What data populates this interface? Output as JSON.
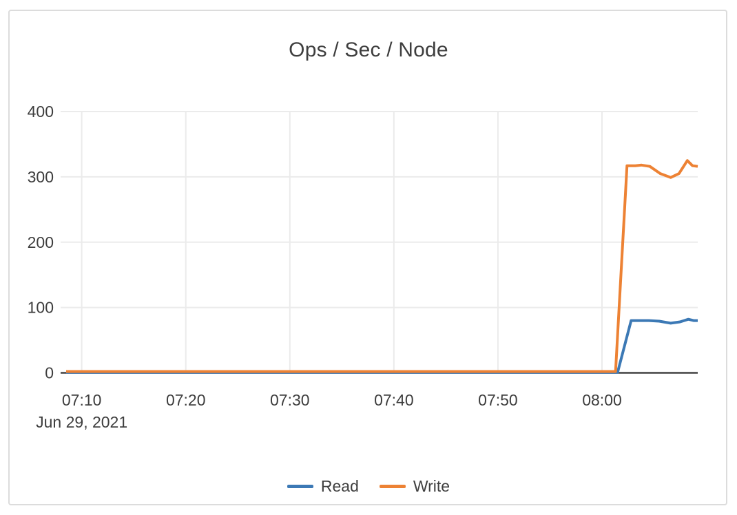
{
  "panel": {
    "background": "#ffffff",
    "border_color": "#dcdcdc"
  },
  "colors": {
    "text": "#3e3e3e",
    "grid": "#ebebeb",
    "axis_line": "#434343",
    "read_blue": "#3c79b5",
    "write_orange": "#ed8234"
  },
  "chart_data": {
    "type": "line",
    "title": "Ops / Sec / Node",
    "legend_position": "bottom",
    "grid": true,
    "x_axis": {
      "unit": "time",
      "date_label": "Jun 29, 2021",
      "range_minutes_after_0700": [
        8.5,
        69.2
      ],
      "ticks": [
        {
          "t": 10,
          "label": "07:10"
        },
        {
          "t": 20,
          "label": "07:20"
        },
        {
          "t": 30,
          "label": "07:30"
        },
        {
          "t": 40,
          "label": "07:40"
        },
        {
          "t": 50,
          "label": "07:50"
        },
        {
          "t": 60,
          "label": "08:00"
        }
      ]
    },
    "y_axis": {
      "range": [
        0,
        400
      ],
      "ticks": [
        0,
        100,
        200,
        300,
        400
      ]
    },
    "series": [
      {
        "name": "Read",
        "color": "#3c79b5",
        "points": [
          [
            8.5,
            0.8
          ],
          [
            20,
            0.8
          ],
          [
            30,
            0.8
          ],
          [
            40,
            0.8
          ],
          [
            50,
            0.8
          ],
          [
            61.5,
            0.8
          ],
          [
            62.8,
            80
          ],
          [
            64.5,
            80
          ],
          [
            65.5,
            79
          ],
          [
            66.6,
            76
          ],
          [
            67.5,
            78
          ],
          [
            68.3,
            82
          ],
          [
            68.8,
            80
          ],
          [
            69.2,
            80
          ]
        ]
      },
      {
        "name": "Write",
        "color": "#ed8234",
        "points": [
          [
            8.5,
            2
          ],
          [
            20,
            2
          ],
          [
            30,
            2
          ],
          [
            40,
            2
          ],
          [
            50,
            2
          ],
          [
            61.3,
            2
          ],
          [
            62.4,
            317
          ],
          [
            63.2,
            317
          ],
          [
            63.8,
            318
          ],
          [
            64.6,
            316
          ],
          [
            65.6,
            305
          ],
          [
            66.6,
            299
          ],
          [
            67.4,
            305
          ],
          [
            68.2,
            325
          ],
          [
            68.7,
            317
          ],
          [
            69.2,
            316
          ]
        ]
      }
    ]
  }
}
